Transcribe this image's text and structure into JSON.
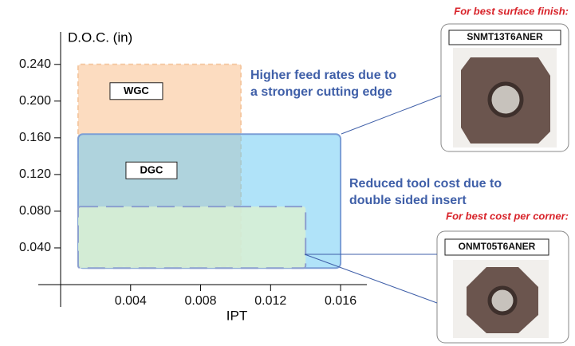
{
  "chart_data": {
    "type": "region",
    "x_label": "IPT",
    "y_label": "D.O.C. (in)",
    "xlim": [
      0,
      0.0175
    ],
    "ylim": [
      0,
      0.265
    ],
    "xticks": [
      0.004,
      0.008,
      0.012,
      0.016
    ],
    "yticks": [
      {
        "value": 0.04,
        "label": "0.040"
      },
      {
        "value": 0.08,
        "label": "0.080"
      },
      {
        "value": 0.12,
        "label": "0.120"
      },
      {
        "value": 0.16,
        "label": "0.160"
      },
      {
        "value": 0.2,
        "label": "0.200"
      },
      {
        "value": 0.24,
        "label": "0.240"
      }
    ],
    "regions": [
      {
        "name": "WGC",
        "color": "#fcdcc0",
        "x": [
          0.001,
          0.0103
        ],
        "y": [
          0.02,
          0.24
        ]
      },
      {
        "name": "DGC",
        "color": "#6fccf4",
        "x": [
          0.001,
          0.016
        ],
        "y": [
          0.018,
          0.164
        ]
      },
      {
        "color": "#d9f0d3",
        "x": [
          0.001,
          0.014
        ],
        "y": [
          0.018,
          0.085
        ]
      }
    ],
    "annotations": [
      [
        "Higher feed rates due to",
        "a stronger cutting edge"
      ],
      [
        "Reduced tool cost due to",
        "double sided insert"
      ]
    ],
    "callouts": [
      {
        "heading": "For best surface finish:",
        "product": "SNMT13T6ANER"
      },
      {
        "heading": "For best cost per corner:",
        "product": "ONMT05T6ANER"
      }
    ]
  }
}
